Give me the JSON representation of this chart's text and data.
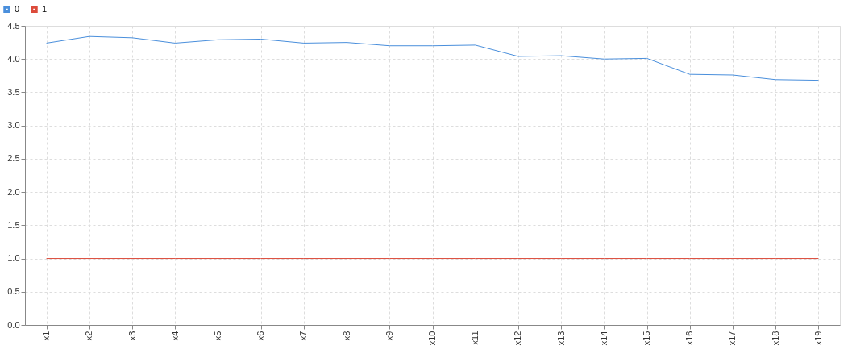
{
  "chart_data": {
    "type": "line",
    "categories": [
      "x1",
      "x2",
      "x3",
      "x4",
      "x5",
      "x6",
      "x7",
      "x8",
      "x9",
      "x10",
      "x11",
      "x12",
      "x13",
      "x14",
      "x15",
      "x16",
      "x17",
      "x18",
      "x19"
    ],
    "series": [
      {
        "name": "0",
        "color": "#4a8fdc",
        "values": [
          4.24,
          4.34,
          4.32,
          4.24,
          4.29,
          4.3,
          4.24,
          4.25,
          4.2,
          4.2,
          4.21,
          4.04,
          4.05,
          4.0,
          4.01,
          3.77,
          3.76,
          3.69,
          3.68
        ]
      },
      {
        "name": "1",
        "color": "#dc4b3b",
        "values": [
          1,
          1,
          1,
          1,
          1,
          1,
          1,
          1,
          1,
          1,
          1,
          1,
          1,
          1,
          1,
          1,
          1,
          1,
          1
        ]
      }
    ],
    "ylim": [
      0,
      4.5
    ],
    "yticks": [
      {
        "value": 0,
        "label": "0.0"
      },
      {
        "value": 0.5,
        "label": "0.5"
      },
      {
        "value": 1,
        "label": "1.0"
      },
      {
        "value": 1.5,
        "label": "1.5"
      },
      {
        "value": 2,
        "label": "2.0"
      },
      {
        "value": 2.5,
        "label": "2.5"
      },
      {
        "value": 3,
        "label": "3.0"
      },
      {
        "value": 3.5,
        "label": "3.5"
      },
      {
        "value": 4,
        "label": "4.0"
      },
      {
        "value": 4.5,
        "label": "4.5"
      }
    ],
    "grid": true,
    "legend": "top left",
    "marker": "none",
    "line_style": "solid"
  }
}
